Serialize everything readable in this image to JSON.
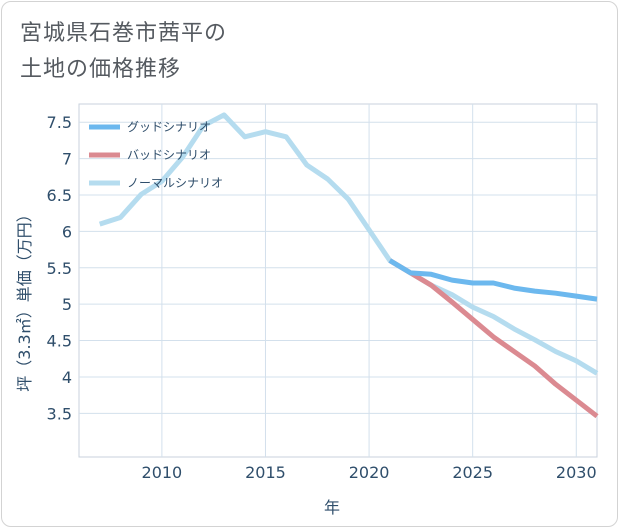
{
  "title_lines": [
    "宮城県石巻市茜平の",
    "土地の価格推移"
  ],
  "chart_data": {
    "type": "line",
    "xlabel": "年",
    "ylabel": "坪（3.3㎡）単価（万円）",
    "xlim": [
      2006,
      2031
    ],
    "ylim": [
      2.9,
      7.75
    ],
    "x_ticks": [
      2010,
      2015,
      2020,
      2025,
      2030
    ],
    "y_ticks": [
      3.5,
      4,
      4.5,
      5,
      5.5,
      6,
      6.5,
      7,
      7.5
    ],
    "grid": true,
    "legend_position": "top-left",
    "series": [
      {
        "name": "グッドシナリオ",
        "color": "#6cb8ee",
        "x": [
          2021,
          2022,
          2023,
          2024,
          2025,
          2026,
          2027,
          2028,
          2029,
          2030,
          2031
        ],
        "y": [
          5.6,
          5.43,
          5.41,
          5.33,
          5.29,
          5.29,
          5.22,
          5.18,
          5.15,
          5.11,
          5.07
        ]
      },
      {
        "name": "バッドシナリオ",
        "color": "#db8a91",
        "x": [
          2021,
          2022,
          2023,
          2024,
          2025,
          2026,
          2027,
          2028,
          2029,
          2030,
          2031
        ],
        "y": [
          5.6,
          5.43,
          5.26,
          5.03,
          4.79,
          4.55,
          4.35,
          4.15,
          3.9,
          3.68,
          3.46
        ]
      },
      {
        "name": "ノーマルシナリオ",
        "color": "#b5dcef",
        "x": [
          2007,
          2008,
          2009,
          2010,
          2011,
          2012,
          2013,
          2014,
          2015,
          2016,
          2017,
          2018,
          2019,
          2020,
          2021,
          2022,
          2023,
          2024,
          2025,
          2026,
          2027,
          2028,
          2029,
          2030,
          2031
        ],
        "y": [
          6.1,
          6.19,
          6.51,
          6.69,
          7.02,
          7.45,
          7.6,
          7.3,
          7.37,
          7.3,
          6.91,
          6.72,
          6.44,
          6.02,
          5.6,
          5.43,
          5.26,
          5.13,
          4.96,
          4.83,
          4.66,
          4.51,
          4.35,
          4.22,
          4.05
        ]
      }
    ]
  }
}
